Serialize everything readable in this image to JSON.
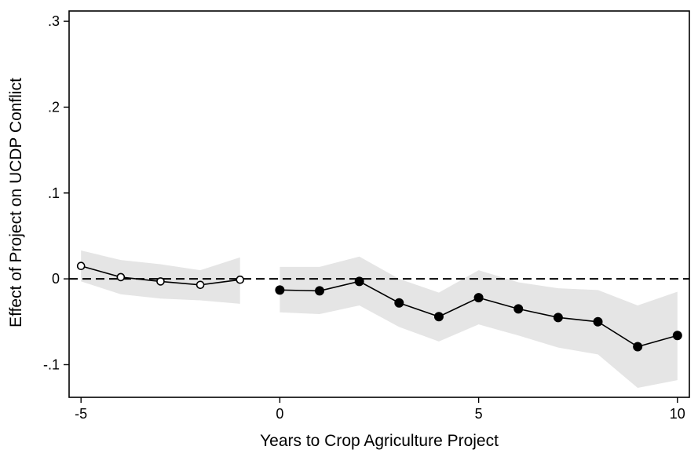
{
  "chart_data": {
    "type": "line",
    "title": "",
    "xlabel": "Years to Crop Agriculture Project",
    "ylabel": "Effect of Project on UCDP Conflict",
    "xlim": [
      -5.3,
      10.3
    ],
    "ylim": [
      -0.138,
      0.312
    ],
    "x_ticks": [
      -5,
      0,
      5,
      10
    ],
    "x_tick_labels": [
      "-5",
      "0",
      "5",
      "10"
    ],
    "y_ticks": [
      -0.1,
      0,
      0.1,
      0.2,
      0.3
    ],
    "y_tick_labels": [
      "-.1",
      "0",
      ".1",
      ".2",
      ".3"
    ],
    "reference_line": {
      "y": 0,
      "style": "dashed"
    },
    "grid": false,
    "series": [
      {
        "marker": "hollow-circle",
        "points": [
          {
            "x": -5,
            "y": 0.015,
            "lo": -0.003,
            "hi": 0.033
          },
          {
            "x": -4,
            "y": 0.002,
            "lo": -0.018,
            "hi": 0.022
          },
          {
            "x": -3,
            "y": -0.003,
            "lo": -0.023,
            "hi": 0.017
          },
          {
            "x": -2,
            "y": -0.007,
            "lo": -0.025,
            "hi": 0.01
          },
          {
            "x": -1,
            "y": -0.001,
            "lo": -0.029,
            "hi": 0.025
          }
        ]
      },
      {
        "marker": "filled-circle",
        "points": [
          {
            "x": 0,
            "y": -0.013,
            "lo": -0.039,
            "hi": 0.014
          },
          {
            "x": 1,
            "y": -0.014,
            "lo": -0.041,
            "hi": 0.014
          },
          {
            "x": 2,
            "y": -0.003,
            "lo": -0.031,
            "hi": 0.026
          },
          {
            "x": 3,
            "y": -0.028,
            "lo": -0.056,
            "hi": 0.0
          },
          {
            "x": 4,
            "y": -0.044,
            "lo": -0.073,
            "hi": -0.016
          },
          {
            "x": 5,
            "y": -0.022,
            "lo": -0.053,
            "hi": 0.01
          },
          {
            "x": 6,
            "y": -0.035,
            "lo": -0.066,
            "hi": -0.004
          },
          {
            "x": 7,
            "y": -0.045,
            "lo": -0.08,
            "hi": -0.011
          },
          {
            "x": 8,
            "y": -0.05,
            "lo": -0.088,
            "hi": -0.013
          },
          {
            "x": 9,
            "y": -0.079,
            "lo": -0.127,
            "hi": -0.031
          },
          {
            "x": 10,
            "y": -0.066,
            "lo": -0.118,
            "hi": -0.015
          }
        ]
      }
    ],
    "colors": {
      "line": "#000000",
      "band": "#e5e5e5",
      "frame": "#000000"
    }
  }
}
